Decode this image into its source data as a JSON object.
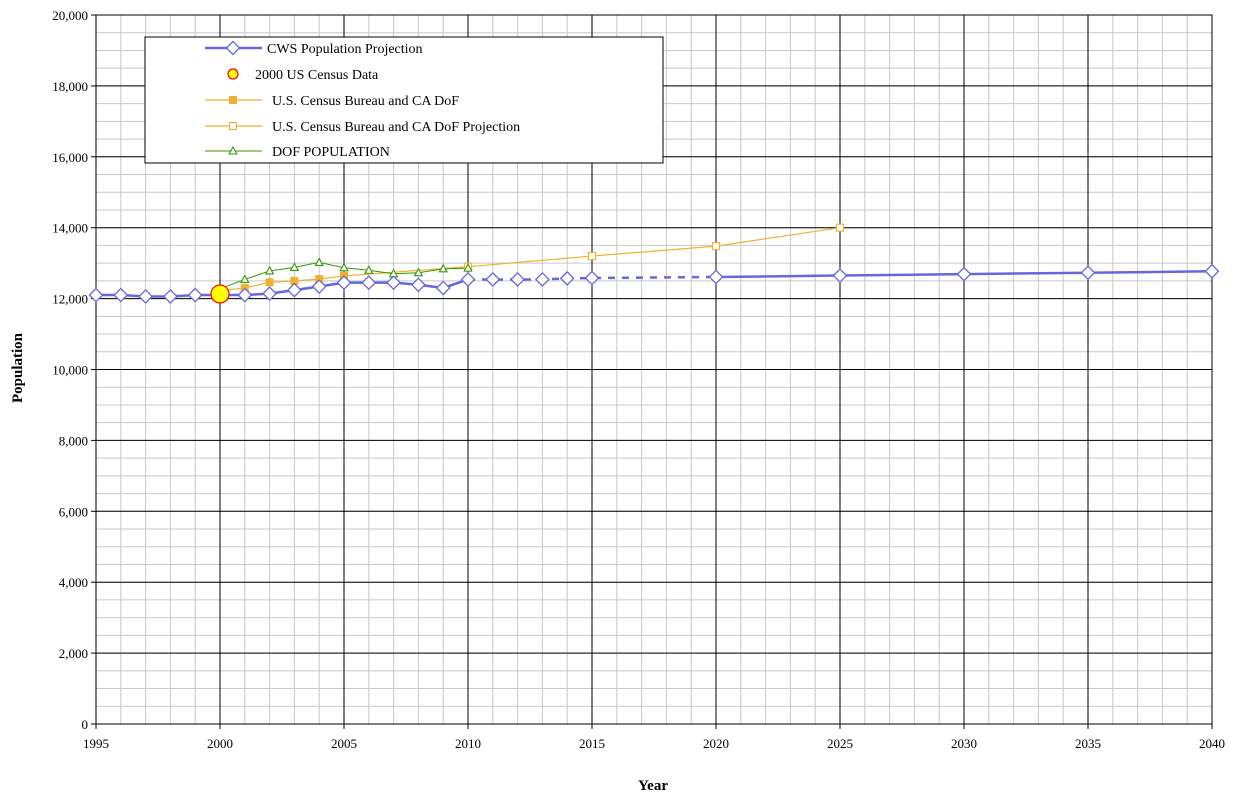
{
  "chart_data": {
    "type": "line",
    "title": "",
    "xlabel": "Year",
    "ylabel": "Population",
    "xlim": [
      1995,
      2040
    ],
    "ylim": [
      0,
      20000
    ],
    "x_ticks": [
      1995,
      2000,
      2005,
      2010,
      2015,
      2020,
      2025,
      2030,
      2035,
      2040
    ],
    "x_tick_labels": [
      "1995",
      "2000",
      "2005",
      "2010",
      "2015",
      "2020",
      "2025",
      "2030",
      "2035",
      "2040"
    ],
    "y_ticks": [
      0,
      2000,
      4000,
      6000,
      8000,
      10000,
      12000,
      14000,
      16000,
      18000,
      20000
    ],
    "y_tick_labels": [
      "0",
      "2,000",
      "4,000",
      "6,000",
      "8,000",
      "10,000",
      "12,000",
      "14,000",
      "16,000",
      "18,000",
      "20,000"
    ],
    "grid": true,
    "minor_grid": true,
    "legend_position": "top-left",
    "series": [
      {
        "name": "CWS Population Projection",
        "color": "#6666dd",
        "marker": "diamond-open",
        "solid_segments": [
          {
            "x": [
              1995,
              1996,
              1997,
              1998,
              1999,
              2000,
              2001,
              2002,
              2003,
              2004,
              2005,
              2006,
              2007,
              2008,
              2009,
              2010
            ],
            "y": [
              12100,
              12100,
              12060,
              12060,
              12100,
              12100,
              12100,
              12140,
              12240,
              12340,
              12450,
              12450,
              12450,
              12390,
              12300,
              12540
            ]
          },
          {
            "x": [
              2020,
              2025,
              2030,
              2035,
              2040
            ],
            "y": [
              12610,
              12650,
              12690,
              12730,
              12770
            ]
          }
        ],
        "dashed_segment": {
          "x": [
            2010,
            2011,
            2012,
            2013,
            2014,
            2015,
            2020
          ],
          "y": [
            12540,
            12540,
            12540,
            12540,
            12570,
            12580,
            12610
          ]
        }
      },
      {
        "name": "2000 US Census Data",
        "color": "#ffff00",
        "edge_color": "#ff0000",
        "marker": "circle",
        "x": [
          2000
        ],
        "y": [
          12130
        ]
      },
      {
        "name": "U.S. Census Bureau and CA DoF",
        "color": "#f0b030",
        "marker": "square-filled",
        "x": [
          2000,
          2001,
          2002,
          2003,
          2004,
          2005
        ],
        "y": [
          12220,
          12300,
          12460,
          12500,
          12550,
          12640
        ]
      },
      {
        "name": "U.S. Census Bureau and CA DoF Projection",
        "color": "#f0b030",
        "marker": "square-open",
        "x": [
          2005,
          2010,
          2015,
          2020,
          2025
        ],
        "y": [
          12640,
          12900,
          13200,
          13480,
          14000
        ]
      },
      {
        "name": "DOF POPULATION",
        "color": "#339900",
        "marker": "triangle",
        "x": [
          2000,
          2001,
          2002,
          2003,
          2004,
          2005,
          2006,
          2007,
          2008,
          2009,
          2010
        ],
        "y": [
          12280,
          12540,
          12780,
          12880,
          13020,
          12870,
          12800,
          12700,
          12730,
          12840,
          12860
        ]
      }
    ]
  }
}
